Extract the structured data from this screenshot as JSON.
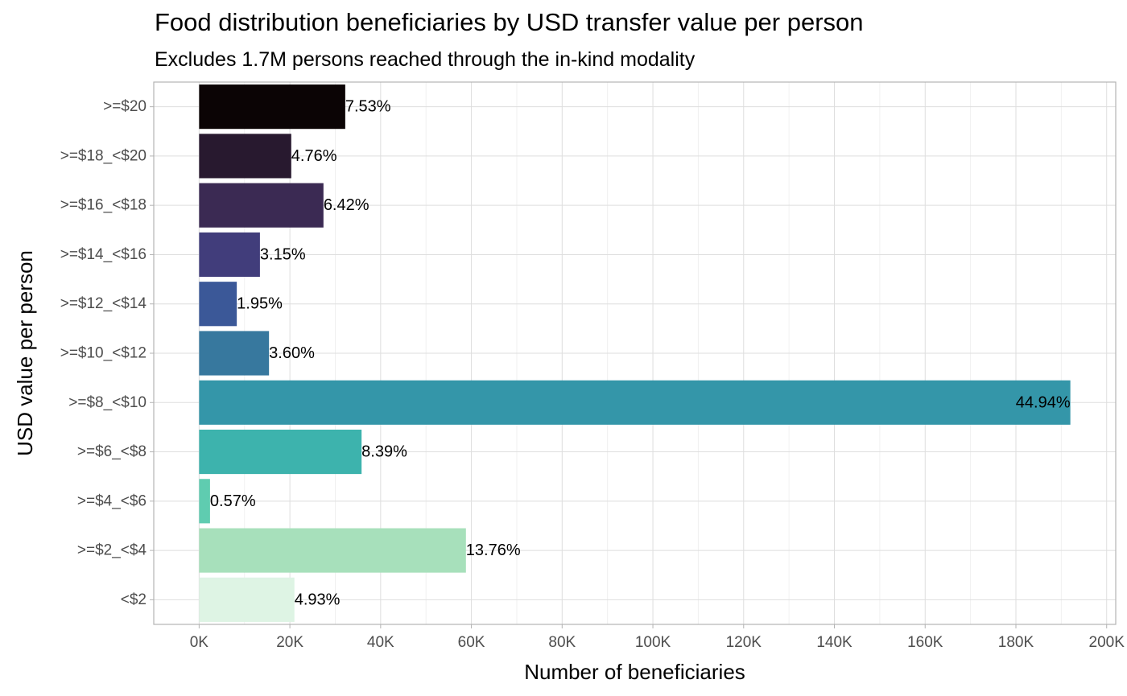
{
  "chart_data": {
    "type": "bar",
    "orientation": "horizontal",
    "title": "Food distribution beneficiaries by USD transfer value per person",
    "subtitle": "Excludes 1.7M persons reached through the in-kind modality",
    "xlabel": "Number of beneficiaries",
    "ylabel": "USD value per person",
    "xlim": [
      -10000,
      202000
    ],
    "x_ticks": [
      0,
      20000,
      40000,
      60000,
      80000,
      100000,
      120000,
      140000,
      160000,
      180000,
      200000
    ],
    "x_tick_labels": [
      "0K",
      "20K",
      "40K",
      "60K",
      "80K",
      "100K",
      "120K",
      "140K",
      "160K",
      "180K",
      "200K"
    ],
    "grid": true,
    "categories": [
      ">=$20",
      ">=$18_<$20",
      ">=$16_<$18",
      ">=$14_<$16",
      ">=$12_<$14",
      ">=$10_<$12",
      ">=$8_<$10",
      ">=$6_<$8",
      ">=$4_<$6",
      ">=$2_<$4",
      "<$2"
    ],
    "values": [
      32200,
      20300,
      27400,
      13400,
      8300,
      15400,
      192000,
      35800,
      2400,
      58800,
      21000
    ],
    "labels": [
      "7.53%",
      "4.76%",
      "6.42%",
      "3.15%",
      "1.95%",
      "3.60%",
      "44.94%",
      "8.39%",
      "0.57%",
      "13.76%",
      "4.93%"
    ],
    "colors": [
      "#0b0405",
      "#28192f",
      "#3b2a53",
      "#413d7b",
      "#3b5898",
      "#37789e",
      "#3496a9",
      "#3db3ad",
      "#5fccb0",
      "#a7e0bb",
      "#def4e4"
    ]
  }
}
